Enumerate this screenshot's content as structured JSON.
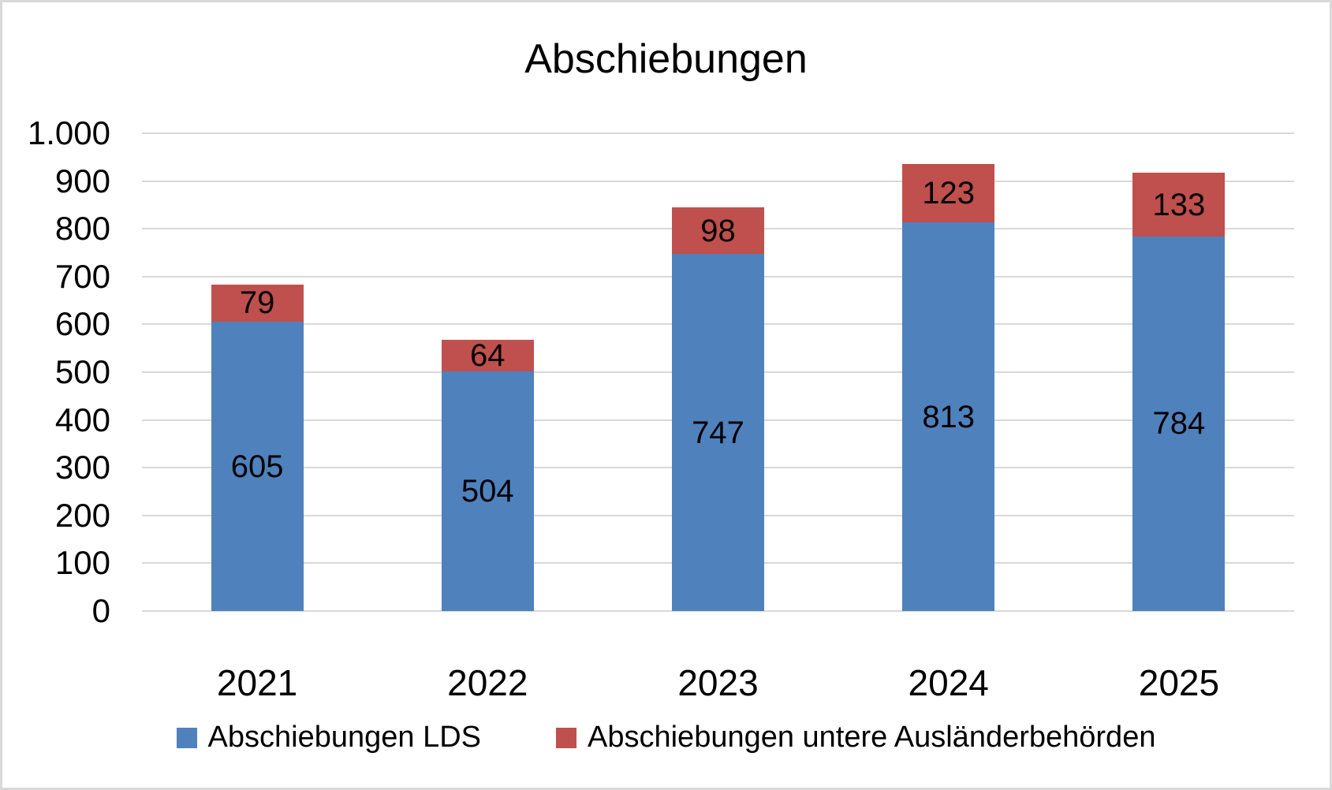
{
  "chart_data": {
    "type": "bar",
    "stacked": true,
    "title": "Abschiebungen",
    "categories": [
      "2021",
      "2022",
      "2023",
      "2024",
      "2025"
    ],
    "series": [
      {
        "name": "Abschiebungen LDS",
        "color": "#4F81BD",
        "values": [
          605,
          504,
          747,
          813,
          784
        ]
      },
      {
        "name": "Abschiebungen untere Ausländerbehörden",
        "color": "#C0504D",
        "values": [
          79,
          64,
          98,
          123,
          133
        ]
      }
    ],
    "totals": [
      684,
      568,
      845,
      936,
      917
    ],
    "y_axis": {
      "min": 0,
      "max": 1000,
      "step": 100,
      "tick_labels": [
        "0",
        "100",
        "200",
        "300",
        "400",
        "500",
        "600",
        "700",
        "800",
        "900",
        "1.000"
      ]
    },
    "x_axis": {
      "tick_labels": [
        "2021",
        "2022",
        "2023",
        "2024",
        "2025"
      ]
    },
    "grid": true,
    "gridline_color": "#D9D9D9",
    "data_labels": true,
    "legend_position": "bottom"
  },
  "colors": {
    "background": "#FFFFFF",
    "border": "#D9D9D9",
    "text": "#000000"
  }
}
